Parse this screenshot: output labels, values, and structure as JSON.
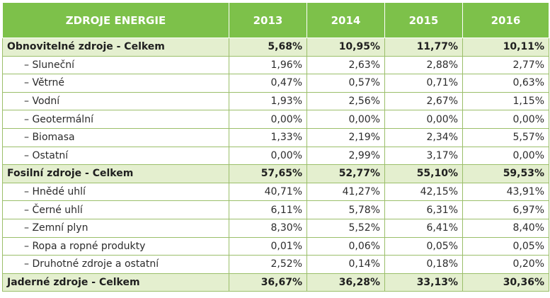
{
  "table": {
    "headers": [
      "ZDROJE ENERGIE",
      "2013",
      "2014",
      "2015",
      "2016"
    ],
    "rows": [
      {
        "kind": "total",
        "label": "Obnovitelné zdroje - Celkem",
        "values": [
          "5,68%",
          "10,95%",
          "11,77%",
          "10,11%"
        ]
      },
      {
        "kind": "item",
        "label": "– Sluneční",
        "values": [
          "1,96%",
          "2,63%",
          "2,88%",
          "2,77%"
        ]
      },
      {
        "kind": "item",
        "label": "– Větrné",
        "values": [
          "0,47%",
          "0,57%",
          "0,71%",
          "0,63%"
        ]
      },
      {
        "kind": "item",
        "label": "– Vodní",
        "values": [
          "1,93%",
          "2,56%",
          "2,67%",
          "1,15%"
        ]
      },
      {
        "kind": "item",
        "label": "– Geotermální",
        "values": [
          "0,00%",
          "0,00%",
          "0,00%",
          "0,00%"
        ]
      },
      {
        "kind": "item",
        "label": "– Biomasa",
        "values": [
          "1,33%",
          "2,19%",
          "2,34%",
          "5,57%"
        ]
      },
      {
        "kind": "item",
        "label": "– Ostatní",
        "values": [
          "0,00%",
          "2,99%",
          "3,17%",
          "0,00%"
        ]
      },
      {
        "kind": "total",
        "label": "Fosilní zdroje - Celkem",
        "values": [
          "57,65%",
          "52,77%",
          "55,10%",
          "59,53%"
        ]
      },
      {
        "kind": "item",
        "label": "– Hnědé uhlí",
        "values": [
          "40,71%",
          "41,27%",
          "42,15%",
          "43,91%"
        ]
      },
      {
        "kind": "item",
        "label": "– Černé uhlí",
        "values": [
          "6,11%",
          "5,78%",
          "6,31%",
          "6,97%"
        ]
      },
      {
        "kind": "item",
        "label": "– Zemní plyn",
        "values": [
          "8,30%",
          "5,52%",
          "6,41%",
          "8,40%"
        ]
      },
      {
        "kind": "item",
        "label": "– Ropa a ropné produkty",
        "values": [
          "0,01%",
          "0,06%",
          "0,05%",
          "0,05%"
        ]
      },
      {
        "kind": "item",
        "label": "– Druhotné zdroje a ostatní",
        "values": [
          "2,52%",
          "0,14%",
          "0,18%",
          "0,20%"
        ]
      },
      {
        "kind": "total",
        "label": "Jaderné zdroje - Celkem",
        "values": [
          "36,67%",
          "36,28%",
          "33,13%",
          "30,36%"
        ]
      }
    ]
  },
  "colors": {
    "header_bg": "#7dc14a",
    "header_text": "#ffffff",
    "total_row_bg": "#e4efcf",
    "border": "#9bbf6a"
  }
}
